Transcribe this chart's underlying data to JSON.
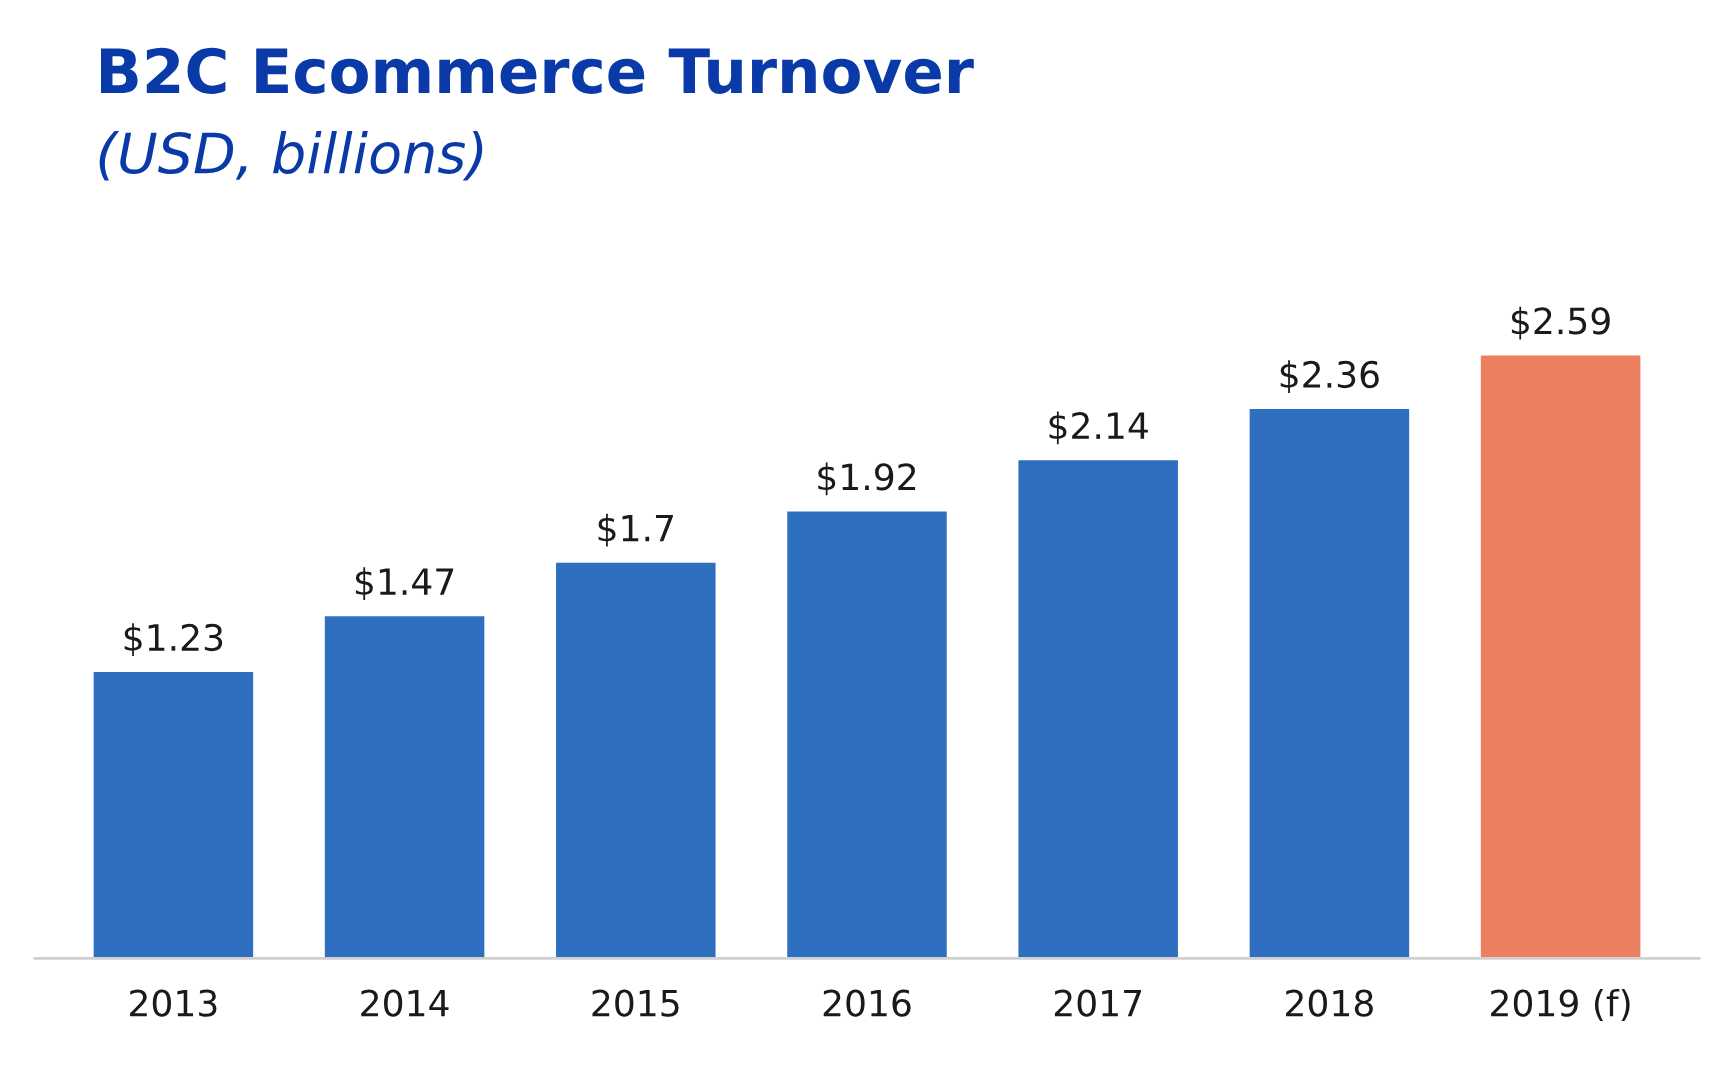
{
  "chart_data": {
    "type": "bar",
    "title": "B2C Ecommerce Turnover",
    "subtitle": "(USD, billions)",
    "categories": [
      "2013",
      "2014",
      "2015",
      "2016",
      "2017",
      "2018",
      "2019 (f)"
    ],
    "values": [
      1.23,
      1.47,
      1.7,
      1.92,
      2.14,
      2.36,
      2.59
    ],
    "colors": [
      "#2e70bf",
      "#2e70bf",
      "#2e70bf",
      "#2e70bf",
      "#2e70bf",
      "#2e70bf",
      "#ec7f60"
    ],
    "value_labels": [
      "$1.23",
      "$1.47",
      "$1.7",
      "$1.92",
      "$2.14",
      "$2.36",
      "$2.59"
    ],
    "grid": false,
    "legend": false,
    "tick_labels": "x"
  }
}
